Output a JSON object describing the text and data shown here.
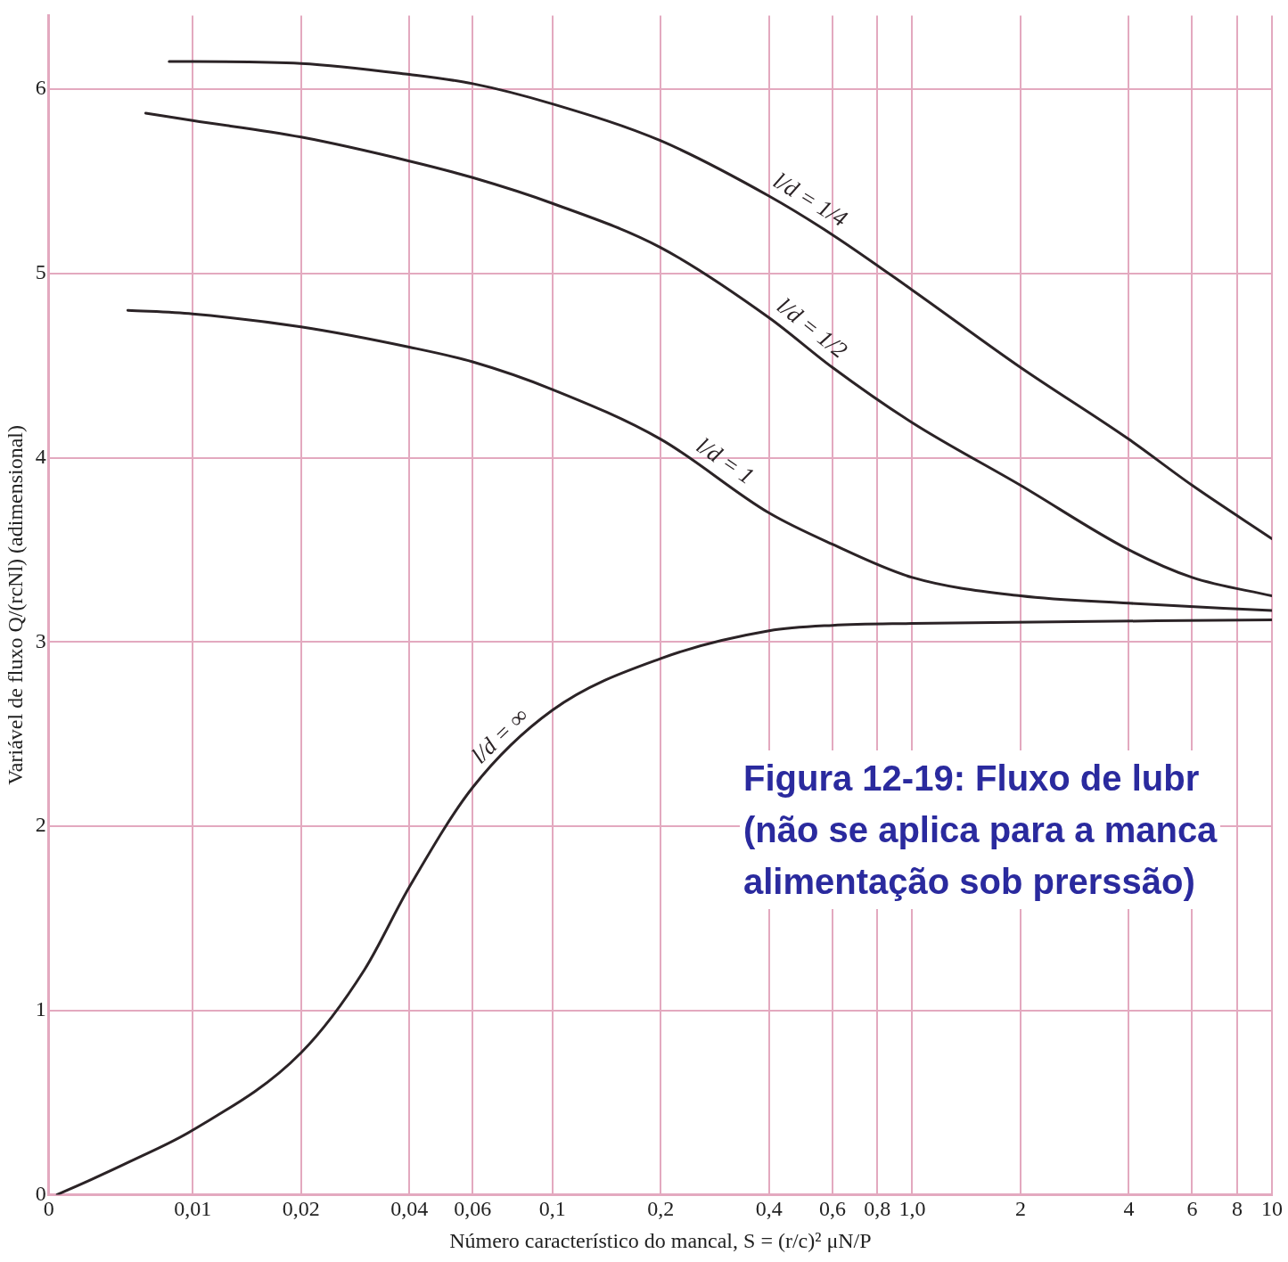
{
  "chart_data": {
    "type": "line",
    "xlabel": "Número característico do mancal, S = (r/c)² μN/P",
    "ylabel": "Variável de fluxo Q/(rcNl) (adimensional)",
    "annotations": [
      "Figura 12-19: Fluxo de lubr",
      "(não se aplica para a manca",
      "alimentação sob prerssão)"
    ],
    "log": "x",
    "xlim": [
      0,
      10
    ],
    "xticks": [
      0,
      {
        "value": 0.01,
        "label": "0,01"
      },
      {
        "value": 0.02,
        "label": "0,02"
      },
      {
        "value": 0.04,
        "label": "0,04"
      },
      {
        "value": 0.06,
        "label": "0,06"
      },
      {
        "value": 0.1,
        "label": "0,1"
      },
      {
        "value": 0.2,
        "label": "0,2"
      },
      {
        "value": 0.4,
        "label": "0,4"
      },
      {
        "value": 0.6,
        "label": "0,6"
      },
      {
        "value": 0.8,
        "label": "0,8"
      },
      {
        "value": 1,
        "label": "1,0"
      },
      2,
      4,
      6,
      8,
      10
    ],
    "ylim": [
      0,
      6.4
    ],
    "yticks": [
      0,
      1,
      2,
      3,
      4,
      5,
      6
    ],
    "grid": true,
    "legend": false,
    "marker": "none",
    "line_style": "solid",
    "series": [
      {
        "name": "l/d = 1/4",
        "color": "#2b2326",
        "x": [
          0.0086,
          0.01,
          0.02,
          0.04,
          0.06,
          0.1,
          0.2,
          0.4,
          0.6,
          1,
          2,
          4,
          6,
          10
        ],
        "values": [
          6.15,
          6.15,
          6.14,
          6.08,
          6.03,
          5.92,
          5.72,
          5.42,
          5.21,
          4.91,
          4.49,
          4.1,
          3.85,
          3.56
        ]
      },
      {
        "name": "l/d = 1/2",
        "color": "#2b2326",
        "x": [
          0.0074,
          0.01,
          0.02,
          0.04,
          0.06,
          0.1,
          0.2,
          0.4,
          0.6,
          1,
          2,
          4,
          6,
          10
        ],
        "values": [
          5.87,
          5.83,
          5.74,
          5.61,
          5.52,
          5.38,
          5.14,
          4.76,
          4.49,
          4.19,
          3.85,
          3.5,
          3.35,
          3.25
        ]
      },
      {
        "name": "l/d = 1",
        "color": "#2b2326",
        "x": [
          0.0066,
          0.01,
          0.02,
          0.04,
          0.06,
          0.1,
          0.2,
          0.4,
          0.6,
          1,
          2,
          4,
          10
        ],
        "values": [
          4.8,
          4.78,
          4.71,
          4.6,
          4.52,
          4.37,
          4.1,
          3.7,
          3.53,
          3.35,
          3.25,
          3.21,
          3.17
        ]
      },
      {
        "name": "l/d = ∞",
        "color": "#2b2326",
        "x": [
          0.0042,
          0.0052,
          0.0067,
          0.01,
          0.02,
          0.03,
          0.04,
          0.06,
          0.1,
          0.2,
          0.4,
          0.6,
          1,
          10
        ],
        "values": [
          0,
          0.08,
          0.18,
          0.35,
          0.77,
          1.22,
          1.67,
          2.21,
          2.63,
          2.91,
          3.06,
          3.09,
          3.1,
          3.12
        ]
      }
    ]
  }
}
